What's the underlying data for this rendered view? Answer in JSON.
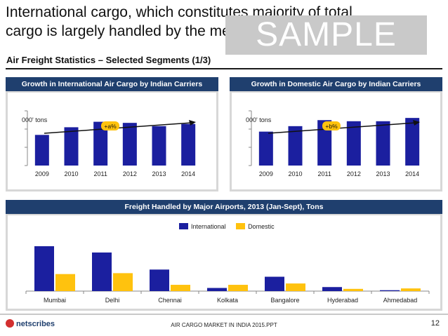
{
  "title": "International cargo, which constitutes majority of total cargo is largely handled by the metro airports",
  "watermark": "SAMPLE",
  "subtitle": "Air Freight Statistics – Selected Segments (1/3)",
  "panels": {
    "left_header": "Growth in International Air Cargo by Indian Carriers",
    "right_header": "Growth in Domestic Air Cargo by Indian Carriers",
    "bottom_header": "Freight Handled by Major Airports, 2013 (Jan-Sept), Tons"
  },
  "legend": {
    "international": "International",
    "domestic": "Domestic"
  },
  "footer": {
    "logo": "netscribes",
    "center": "AIR CARGO MARKET IN INDIA 2015.PPT",
    "page": "12"
  },
  "colors": {
    "navy": "#1b1f9f",
    "gold": "#ffc20e",
    "header": "#1f3f6e"
  },
  "chart_data": [
    {
      "type": "bar",
      "title": "Growth in International Air Cargo by Indian Carriers",
      "ylabel": "000' tons",
      "categories": [
        "2009",
        "2010",
        "2011",
        "2012",
        "2013",
        "2014"
      ],
      "values": [
        56,
        70,
        80,
        78,
        72,
        76
      ],
      "ylim": [
        0,
        100
      ],
      "annotation": "+a%",
      "color": "#1b1f9f"
    },
    {
      "type": "bar",
      "title": "Growth in Domestic Air Cargo by Indian Carriers",
      "ylabel": "000' tons",
      "categories": [
        "2009",
        "2010",
        "2011",
        "2012",
        "2013",
        "2014"
      ],
      "values": [
        62,
        72,
        83,
        81,
        81,
        87
      ],
      "ylim": [
        0,
        100
      ],
      "annotation": "+b%",
      "color": "#1b1f9f"
    },
    {
      "type": "bar",
      "title": "Freight Handled by Major Airports, 2013 (Jan-Sept), Tons",
      "categories": [
        "Mumbai",
        "Delhi",
        "Chennai",
        "Kolkata",
        "Bangalore",
        "Hyderabad",
        "Ahmedabad"
      ],
      "series": [
        {
          "name": "International",
          "values": [
            100,
            86,
            48,
            7,
            32,
            9,
            2
          ],
          "color": "#1b1f9f"
        },
        {
          "name": "Domestic",
          "values": [
            38,
            40,
            14,
            14,
            17,
            5,
            6
          ],
          "color": "#ffc20e"
        }
      ],
      "ylim": [
        0,
        100
      ]
    }
  ]
}
